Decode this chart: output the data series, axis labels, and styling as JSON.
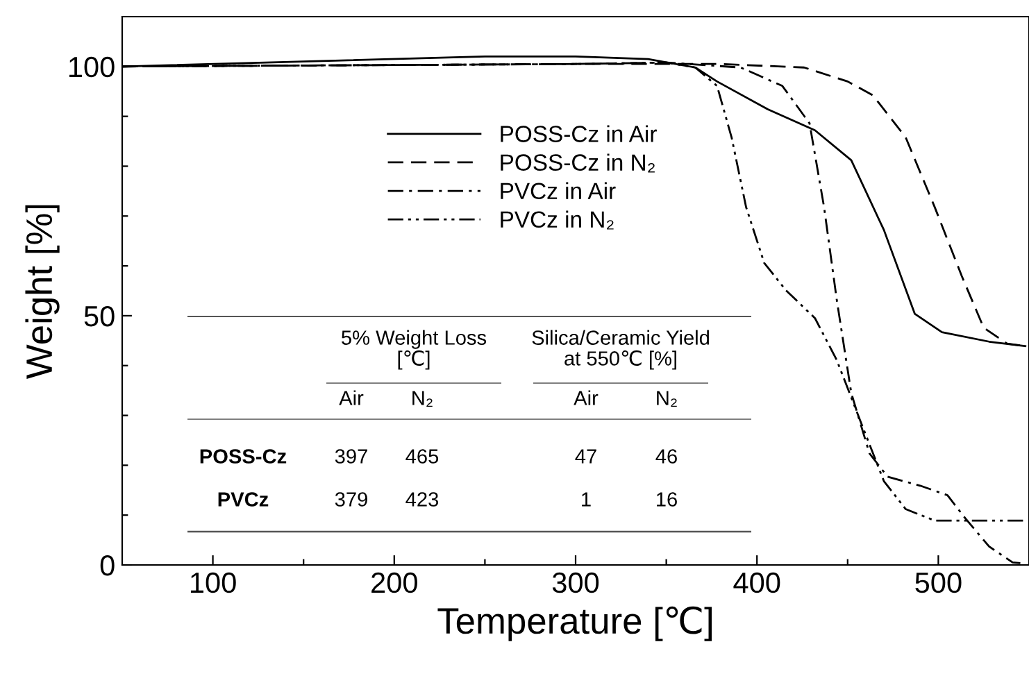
{
  "chart_data": {
    "type": "line",
    "xlabel": "Temperature [℃]",
    "ylabel": "Weight [%]",
    "xlim": [
      50,
      550
    ],
    "ylim": [
      0,
      110
    ],
    "xticks": [
      100,
      {
        "value": 150,
        "label": null
      },
      200,
      {
        "value": 250,
        "label": null
      },
      300,
      {
        "value": 350,
        "label": null
      },
      400,
      {
        "value": 450,
        "label": null
      },
      500
    ],
    "yticks": [
      0,
      {
        "value": 10,
        "label": null
      },
      {
        "value": 20,
        "label": null
      },
      {
        "value": 30,
        "label": null
      },
      {
        "value": 40,
        "label": null
      },
      50,
      {
        "value": 60,
        "label": null
      },
      {
        "value": 70,
        "label": null
      },
      {
        "value": 80,
        "label": null
      },
      {
        "value": 90,
        "label": null
      },
      100
    ],
    "grid": false,
    "legend": "top",
    "marker": "none",
    "series": [
      {
        "name": "POSS-Cz in Air",
        "color": "#000000",
        "line_style": "solid",
        "x": [
          50,
          150,
          250,
          300,
          340,
          366,
          378,
          406,
          432,
          452,
          470,
          487,
          502,
          528,
          548
        ],
        "values": [
          100,
          101,
          102,
          102,
          101.5,
          99.8,
          97,
          91.4,
          87.2,
          81.2,
          67.2,
          50.4,
          46.7,
          44.8,
          43.9
        ]
      },
      {
        "name": "POSS-Cz in N₂",
        "color": "#000000",
        "line_style": "dashed",
        "x": [
          50,
          200,
          300,
          380,
          426,
          450,
          464,
          482,
          498,
          513,
          525,
          538,
          548
        ],
        "values": [
          100,
          100.3,
          100.5,
          100.5,
          99.8,
          97,
          94.2,
          85.8,
          71.8,
          57.9,
          47.6,
          44.4,
          43.9
        ]
      },
      {
        "name": "PVCz in Air",
        "color": "#000000",
        "line_style": "dashdot",
        "x": [
          50,
          300,
          350,
          391,
          414,
          429,
          437,
          444,
          452,
          462,
          472,
          490,
          505,
          515,
          528,
          541,
          548
        ],
        "values": [
          100,
          100.5,
          100.8,
          99.8,
          96.1,
          88.6,
          71.8,
          53.2,
          34.5,
          22.4,
          17.7,
          15.9,
          14.0,
          9.3,
          3.7,
          0.5,
          0.3
        ]
      },
      {
        "name": "PVCz in N₂",
        "color": "#000000",
        "line_style": "dashdotdot",
        "x": [
          50,
          300,
          350,
          366,
          378,
          386,
          394,
          404,
          416,
          432,
          444,
          457,
          470,
          482,
          498,
          548
        ],
        "values": [
          100,
          100.5,
          100.8,
          99.8,
          96.1,
          85.8,
          71.8,
          60.6,
          55.1,
          49.5,
          41.1,
          28.9,
          16.8,
          11.2,
          8.9,
          8.9
        ]
      }
    ],
    "annotations": [
      "5% Weight Loss\n[℃]",
      "Silica/Ceramic Yield\nat 550℃ [%]",
      "Air",
      "N₂",
      "Air",
      "N₂",
      "POSS-Cz",
      "397",
      "465",
      "47",
      "46",
      "PVCz",
      "379",
      "423",
      "1",
      "16"
    ]
  }
}
